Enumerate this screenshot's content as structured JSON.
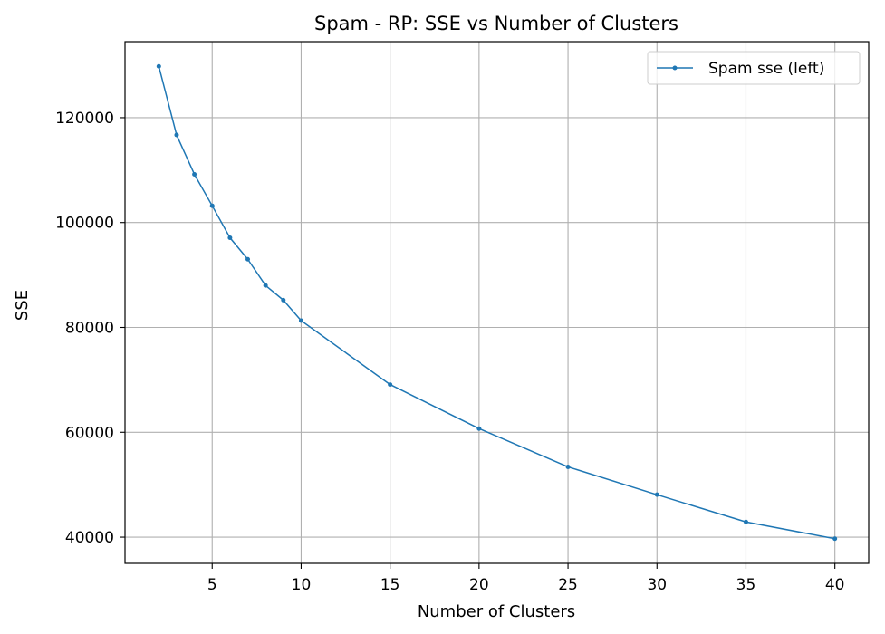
{
  "chart_data": {
    "type": "line",
    "title": "Spam - RP: SSE vs Number of Clusters",
    "xlabel": "Number of Clusters",
    "ylabel": "SSE",
    "xlim": [
      0.1,
      41.9
    ],
    "ylim": [
      35000,
      134500
    ],
    "xticks": [
      5,
      10,
      15,
      20,
      25,
      30,
      35,
      40
    ],
    "yticks": [
      40000,
      60000,
      80000,
      100000,
      120000
    ],
    "grid": true,
    "legend_position": "top-right",
    "series": [
      {
        "name": "Spam sse (left)",
        "color": "#1f77b4",
        "x": [
          2,
          3,
          4,
          5,
          6,
          7,
          8,
          9,
          10,
          15,
          20,
          25,
          30,
          35,
          40
        ],
        "y": [
          129800,
          116700,
          109200,
          103200,
          97100,
          93000,
          88000,
          85200,
          81300,
          69100,
          60700,
          53400,
          48100,
          42900,
          39700
        ]
      }
    ]
  }
}
